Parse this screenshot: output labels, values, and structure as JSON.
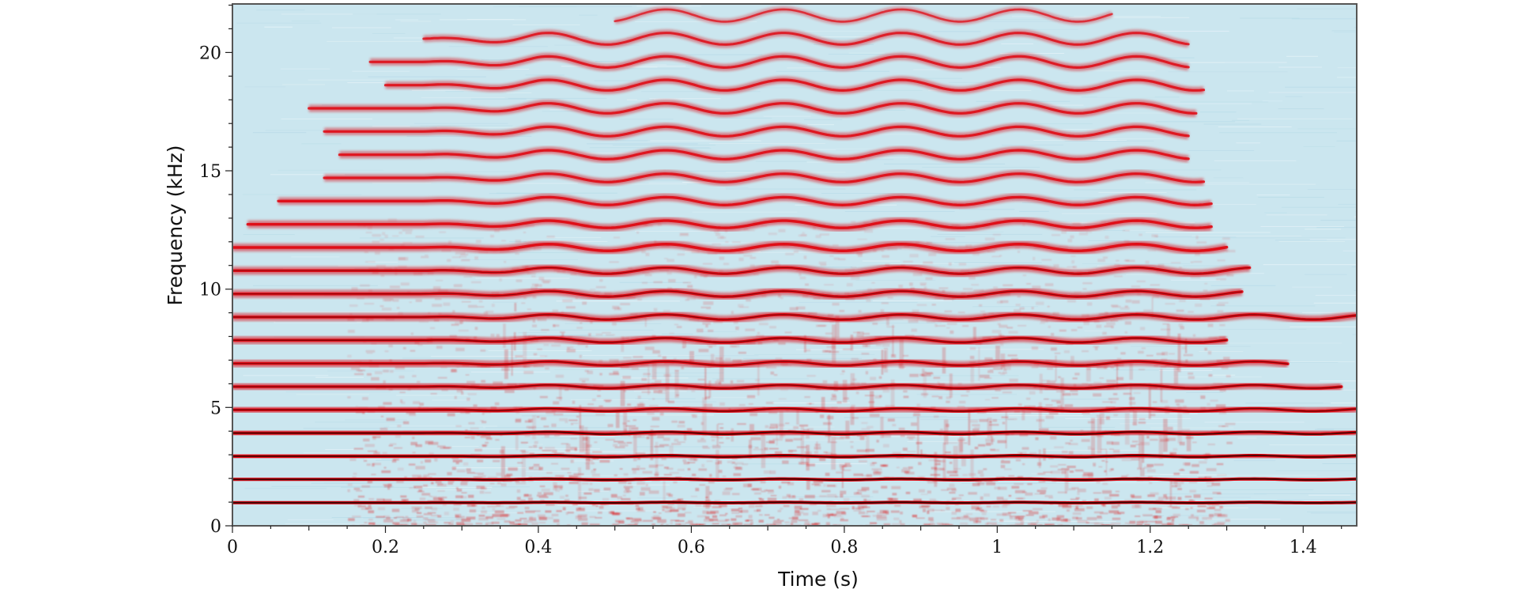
{
  "chart_data": {
    "type": "heatmap",
    "title": "",
    "xlabel": "Time (s)",
    "ylabel": "Frequency (kHz)",
    "xlim": [
      0,
      1.47
    ],
    "ylim": [
      0,
      22.05
    ],
    "x_ticks": [
      0,
      0.2,
      0.4,
      0.6,
      0.8,
      1,
      1.2,
      1.4
    ],
    "x_tick_labels": [
      "0",
      "0.2",
      "0.4",
      "0.6",
      "0.8",
      "1",
      "1.2",
      "1.4"
    ],
    "y_ticks": [
      0,
      5,
      10,
      15,
      20
    ],
    "y_tick_labels": [
      "0",
      "5",
      "10",
      "15",
      "20"
    ],
    "colors": {
      "background": "#cbe6ef",
      "low_energy": "#b8dbe8",
      "high_energy": "#e0000a",
      "peak_energy": "#1a0000",
      "frame": "#555555"
    },
    "fundamental_khz": 0.98,
    "harmonics": [
      {
        "n": 1,
        "freq_khz": 0.98,
        "start_s": 0.0,
        "end_s": 1.47,
        "strength": 1.0
      },
      {
        "n": 2,
        "freq_khz": 1.96,
        "start_s": 0.0,
        "end_s": 1.47,
        "strength": 0.98
      },
      {
        "n": 3,
        "freq_khz": 2.94,
        "start_s": 0.0,
        "end_s": 1.47,
        "strength": 0.96
      },
      {
        "n": 4,
        "freq_khz": 3.92,
        "start_s": 0.0,
        "end_s": 1.47,
        "strength": 0.95
      },
      {
        "n": 5,
        "freq_khz": 4.9,
        "start_s": 0.0,
        "end_s": 1.47,
        "strength": 0.85
      },
      {
        "n": 6,
        "freq_khz": 5.88,
        "start_s": 0.0,
        "end_s": 1.45,
        "strength": 0.82
      },
      {
        "n": 7,
        "freq_khz": 6.86,
        "start_s": 0.0,
        "end_s": 1.38,
        "strength": 0.8
      },
      {
        "n": 8,
        "freq_khz": 7.84,
        "start_s": 0.0,
        "end_s": 1.3,
        "strength": 0.82
      },
      {
        "n": 9,
        "freq_khz": 8.82,
        "start_s": 0.0,
        "end_s": 1.47,
        "strength": 0.8
      },
      {
        "n": 10,
        "freq_khz": 9.8,
        "start_s": 0.0,
        "end_s": 1.32,
        "strength": 0.78
      },
      {
        "n": 11,
        "freq_khz": 10.78,
        "start_s": 0.0,
        "end_s": 1.33,
        "strength": 0.76
      },
      {
        "n": 12,
        "freq_khz": 11.76,
        "start_s": 0.0,
        "end_s": 1.3,
        "strength": 0.74
      },
      {
        "n": 13,
        "freq_khz": 12.74,
        "start_s": 0.02,
        "end_s": 1.28,
        "strength": 0.72
      },
      {
        "n": 14,
        "freq_khz": 13.72,
        "start_s": 0.06,
        "end_s": 1.28,
        "strength": 0.66
      },
      {
        "n": 15,
        "freq_khz": 14.7,
        "start_s": 0.12,
        "end_s": 1.27,
        "strength": 0.62
      },
      {
        "n": 16,
        "freq_khz": 15.68,
        "start_s": 0.14,
        "end_s": 1.25,
        "strength": 0.62
      },
      {
        "n": 17,
        "freq_khz": 16.66,
        "start_s": 0.12,
        "end_s": 1.25,
        "strength": 0.6
      },
      {
        "n": 18,
        "freq_khz": 17.64,
        "start_s": 0.1,
        "end_s": 1.26,
        "strength": 0.6
      },
      {
        "n": 19,
        "freq_khz": 18.62,
        "start_s": 0.2,
        "end_s": 1.27,
        "strength": 0.58
      },
      {
        "n": 20,
        "freq_khz": 19.6,
        "start_s": 0.18,
        "end_s": 1.25,
        "strength": 0.56
      },
      {
        "n": 21,
        "freq_khz": 20.58,
        "start_s": 0.25,
        "end_s": 1.25,
        "strength": 0.5
      },
      {
        "n": 22,
        "freq_khz": 21.56,
        "start_s": 0.5,
        "end_s": 1.15,
        "strength": 0.3
      }
    ],
    "vibrato": {
      "start_s": 0.25,
      "rate_hz": 6.5,
      "depth_fraction": 0.012
    },
    "noise_band_khz": [
      0,
      13
    ],
    "noise_time_s": [
      0.15,
      1.3
    ]
  }
}
